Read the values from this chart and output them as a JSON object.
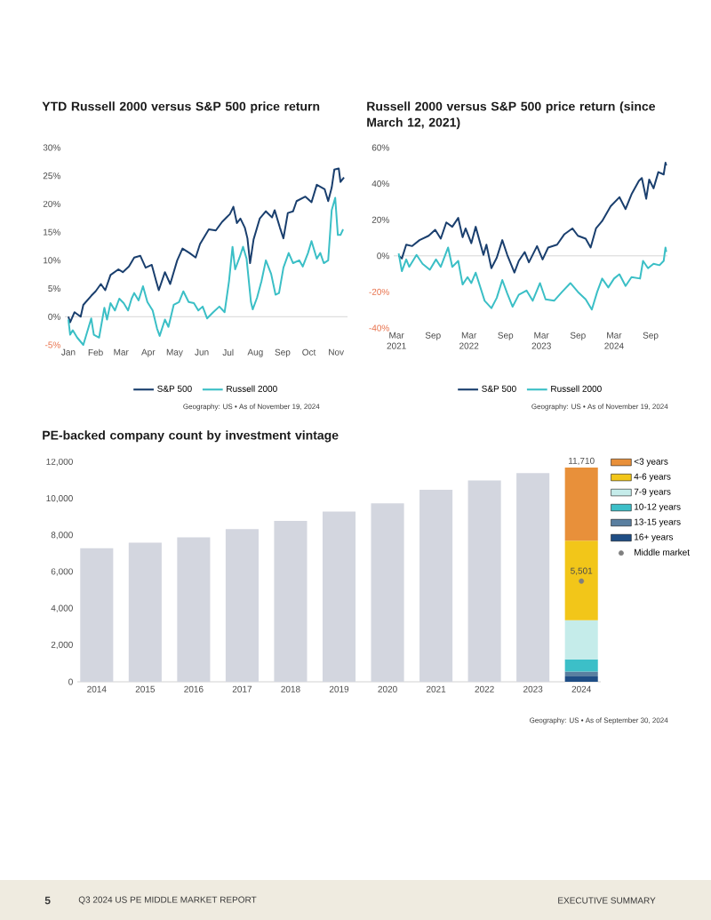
{
  "chart_data": [
    {
      "type": "line",
      "title": "YTD Russell 2000 versus S&P 500 price return",
      "xlim": [
        "2023-12-28",
        "2024-11-14"
      ],
      "xticks": [
        {
          "value": "2024-01-01",
          "label": "Jan"
        },
        {
          "value": "2024-02-01",
          "label": "Feb"
        },
        {
          "value": "2024-03-01",
          "label": "Mar"
        },
        {
          "value": "2024-04-01",
          "label": "Apr"
        },
        {
          "value": "2024-05-01",
          "label": "May"
        },
        {
          "value": "2024-06-01",
          "label": "Jun"
        },
        {
          "value": "2024-07-01",
          "label": "Jul"
        },
        {
          "value": "2024-08-01",
          "label": "Aug"
        },
        {
          "value": "2024-09-01",
          "label": "Sep"
        },
        {
          "value": "2024-10-01",
          "label": "Oct"
        },
        {
          "value": "2024-11-01",
          "label": "Nov"
        }
      ],
      "ylim": [
        -5,
        30
      ],
      "yticks": [
        {
          "value": -5,
          "label": "-5%"
        },
        {
          "value": 0,
          "label": "0%"
        },
        {
          "value": 5,
          "label": "5%"
        },
        {
          "value": 10,
          "label": "10%"
        },
        {
          "value": 15,
          "label": "15%"
        },
        {
          "value": 20,
          "label": "20%"
        },
        {
          "value": 25,
          "label": "25%"
        },
        {
          "value": 30,
          "label": "30%"
        }
      ],
      "ref_lines": [
        {
          "axis": "y",
          "value": 0,
          "color": "#cccccc"
        }
      ],
      "legend": "bottom",
      "annotations": [
        "Geography: US • As of November 19, 2024"
      ],
      "series": [
        {
          "name": "S&P 500",
          "color": "#1a3f6e",
          "x": [
            "2024-01-01",
            "2024-01-03",
            "2024-01-08",
            "2024-01-15",
            "2024-01-18",
            "2024-01-27",
            "2024-02-01",
            "2024-02-07",
            "2024-02-12",
            "2024-02-18",
            "2024-02-27",
            "2024-03-03",
            "2024-03-10",
            "2024-03-16",
            "2024-03-23",
            "2024-03-29",
            "2024-04-05",
            "2024-04-10",
            "2024-04-13",
            "2024-04-20",
            "2024-04-26",
            "2024-05-04",
            "2024-05-10",
            "2024-05-18",
            "2024-05-25",
            "2024-05-30",
            "2024-06-09",
            "2024-06-17",
            "2024-06-24",
            "2024-07-03",
            "2024-07-07",
            "2024-07-11",
            "2024-07-15",
            "2024-07-20",
            "2024-07-23",
            "2024-07-26",
            "2024-07-30",
            "2024-08-06",
            "2024-08-13",
            "2024-08-20",
            "2024-08-23",
            "2024-08-29",
            "2024-09-02",
            "2024-09-07",
            "2024-09-13",
            "2024-09-17",
            "2024-09-27",
            "2024-10-04",
            "2024-10-10",
            "2024-10-19",
            "2024-10-23",
            "2024-10-27",
            "2024-10-30",
            "2024-11-04",
            "2024-11-06",
            "2024-11-10"
          ],
          "values": [
            0,
            -1.0,
            0.8,
            0,
            2.1,
            3.7,
            4.5,
            5.8,
            4.7,
            7.4,
            8.4,
            7.9,
            8.9,
            10.5,
            10.8,
            8.7,
            9.2,
            6.3,
            4.7,
            7.9,
            5.8,
            10.0,
            12.1,
            11.3,
            10.5,
            12.9,
            15.5,
            15.3,
            16.8,
            18.2,
            19.5,
            16.6,
            17.4,
            15.8,
            13.9,
            9.5,
            13.7,
            17.4,
            18.7,
            17.6,
            18.9,
            15.8,
            13.9,
            18.4,
            18.7,
            20.5,
            21.3,
            20.3,
            23.4,
            22.6,
            20.5,
            22.9,
            26.1,
            26.3,
            23.9,
            24.7
          ]
        },
        {
          "name": "Russell 2000",
          "color": "#3bbfc6",
          "x": [
            "2024-01-01",
            "2024-01-03",
            "2024-01-06",
            "2024-01-11",
            "2024-01-18",
            "2024-01-23",
            "2024-01-27",
            "2024-01-30",
            "2024-02-05",
            "2024-02-11",
            "2024-02-14",
            "2024-02-18",
            "2024-02-23",
            "2024-02-28",
            "2024-03-04",
            "2024-03-09",
            "2024-03-13",
            "2024-03-16",
            "2024-03-21",
            "2024-03-26",
            "2024-03-31",
            "2024-04-06",
            "2024-04-11",
            "2024-04-14",
            "2024-04-20",
            "2024-04-24",
            "2024-04-30",
            "2024-05-06",
            "2024-05-11",
            "2024-05-17",
            "2024-05-23",
            "2024-05-28",
            "2024-06-02",
            "2024-06-07",
            "2024-06-14",
            "2024-06-21",
            "2024-06-27",
            "2024-07-02",
            "2024-07-06",
            "2024-07-09",
            "2024-07-14",
            "2024-07-18",
            "2024-07-22",
            "2024-07-27",
            "2024-07-29",
            "2024-08-03",
            "2024-08-08",
            "2024-08-13",
            "2024-08-19",
            "2024-08-24",
            "2024-08-28",
            "2024-09-02",
            "2024-09-08",
            "2024-09-13",
            "2024-09-20",
            "2024-09-24",
            "2024-09-30",
            "2024-10-04",
            "2024-10-10",
            "2024-10-14",
            "2024-10-18",
            "2024-10-23",
            "2024-10-27",
            "2024-10-31",
            "2024-11-03",
            "2024-11-06",
            "2024-11-09"
          ],
          "values": [
            -0.5,
            -3.2,
            -2.4,
            -3.7,
            -5.0,
            -2.4,
            -0.3,
            -3.2,
            -3.7,
            1.6,
            -0.5,
            2.4,
            1.1,
            3.2,
            2.4,
            1.1,
            3.2,
            4.2,
            2.9,
            5.4,
            2.6,
            1.1,
            -2.1,
            -3.4,
            -0.5,
            -1.8,
            2.1,
            2.6,
            4.5,
            2.6,
            2.4,
            1.1,
            1.8,
            -0.3,
            0.8,
            1.8,
            0.8,
            6.3,
            12.4,
            8.4,
            10.5,
            12.4,
            10.3,
            2.6,
            1.3,
            3.4,
            6.3,
            10.0,
            7.6,
            3.9,
            4.2,
            8.7,
            11.3,
            9.5,
            10.0,
            8.9,
            11.3,
            13.4,
            10.3,
            11.3,
            9.5,
            10.0,
            18.9,
            21.1,
            14.5,
            14.5,
            15.5
          ]
        }
      ]
    },
    {
      "type": "line",
      "title": "Russell 2000 versus S&P 500 price return (since March 12, 2021)",
      "xlim": [
        "2021-02-15",
        "2024-11-25"
      ],
      "xticks": [
        {
          "value": "2021-03-01",
          "label": "Mar 2021"
        },
        {
          "value": "2021-09-01",
          "label": "Sep"
        },
        {
          "value": "2022-03-01",
          "label": "Mar 2022"
        },
        {
          "value": "2022-09-01",
          "label": "Sep"
        },
        {
          "value": "2023-03-01",
          "label": "Mar 2023"
        },
        {
          "value": "2023-09-01",
          "label": "Sep"
        },
        {
          "value": "2024-03-01",
          "label": "Mar 2024"
        },
        {
          "value": "2024-09-01",
          "label": "Sep"
        }
      ],
      "ylim": [
        -40,
        60
      ],
      "yticks": [
        {
          "value": -40,
          "label": "-40%"
        },
        {
          "value": -20,
          "label": "-20%"
        },
        {
          "value": 0,
          "label": "0%"
        },
        {
          "value": 20,
          "label": "20%"
        },
        {
          "value": 40,
          "label": "40%"
        },
        {
          "value": 60,
          "label": "60%"
        }
      ],
      "ref_lines": [
        {
          "axis": "y",
          "value": 0,
          "color": "#cccccc"
        }
      ],
      "legend": "bottom",
      "annotations": [
        "Geography: US • As of November 19, 2024"
      ],
      "series": [
        {
          "name": "S&P 500",
          "color": "#1a3f6e",
          "x": [
            "2021-03-12",
            "2021-03-28",
            "2021-04-19",
            "2021-05-19",
            "2021-06-25",
            "2021-08-10",
            "2021-09-12",
            "2021-10-10",
            "2021-11-07",
            "2021-12-07",
            "2022-01-06",
            "2022-01-28",
            "2022-02-12",
            "2022-03-13",
            "2022-04-04",
            "2022-05-13",
            "2022-05-28",
            "2022-06-22",
            "2022-07-19",
            "2022-08-16",
            "2022-09-10",
            "2022-10-16",
            "2022-11-07",
            "2022-12-07",
            "2022-12-28",
            "2023-02-07",
            "2023-03-07",
            "2023-04-04",
            "2023-05-19",
            "2023-06-25",
            "2023-08-04",
            "2023-09-01",
            "2023-10-10",
            "2023-11-04",
            "2023-12-01",
            "2024-01-01",
            "2024-02-13",
            "2024-03-28",
            "2024-04-28",
            "2024-05-28",
            "2024-07-04",
            "2024-07-19",
            "2024-08-10",
            "2024-08-25",
            "2024-09-16",
            "2024-10-10",
            "2024-11-06",
            "2024-11-15",
            "2024-11-19"
          ],
          "values": [
            0,
            -1.5,
            6.2,
            5.4,
            8.7,
            11.1,
            14.4,
            9.5,
            18.5,
            16.1,
            21,
            10.3,
            15.2,
            7.0,
            16.1,
            0.5,
            6.2,
            -6.9,
            -1.1,
            8.7,
            0.5,
            -9.3,
            -2.8,
            2.1,
            -3.6,
            5.4,
            -2.0,
            4.6,
            6.2,
            12,
            15.2,
            11.1,
            9.5,
            4.6,
            15.2,
            19.3,
            27.5,
            32.5,
            25.9,
            34.1,
            41.5,
            43.1,
            31.6,
            42.3,
            37.4,
            46.4,
            45.1,
            51.6,
            50.0
          ]
        },
        {
          "name": "Russell 2000",
          "color": "#3bbfc6",
          "x": [
            "2021-03-12",
            "2021-03-28",
            "2021-04-19",
            "2021-05-04",
            "2021-06-10",
            "2021-07-10",
            "2021-08-16",
            "2021-09-16",
            "2021-10-10",
            "2021-11-16",
            "2021-12-07",
            "2022-01-06",
            "2022-01-28",
            "2022-02-22",
            "2022-03-13",
            "2022-04-04",
            "2022-05-19",
            "2022-06-22",
            "2022-07-19",
            "2022-08-16",
            "2022-09-10",
            "2022-10-07",
            "2022-11-07",
            "2022-12-16",
            "2023-01-16",
            "2023-02-22",
            "2023-03-22",
            "2023-05-04",
            "2023-06-13",
            "2023-07-25",
            "2023-09-01",
            "2023-10-10",
            "2023-11-10",
            "2023-12-07",
            "2024-01-01",
            "2024-02-01",
            "2024-03-01",
            "2024-03-28",
            "2024-04-28",
            "2024-05-28",
            "2024-07-10",
            "2024-07-25",
            "2024-08-19",
            "2024-09-16",
            "2024-10-16",
            "2024-11-06",
            "2024-11-15",
            "2024-11-19"
          ],
          "values": [
            1.3,
            -8.5,
            -2.0,
            -6.1,
            0.5,
            -4.4,
            -7.7,
            -2.0,
            -6.1,
            4.6,
            -6.1,
            -2.8,
            -15.9,
            -11.8,
            -15.1,
            -9.3,
            -24.9,
            -29.0,
            -23.3,
            -13.4,
            -20.8,
            -28.2,
            -21.6,
            -19.2,
            -24.9,
            -15.1,
            -24.1,
            -24.9,
            -20.0,
            -15.1,
            -20.0,
            -24.1,
            -29.8,
            -20.0,
            -12.6,
            -17.5,
            -12.6,
            -10.2,
            -16.7,
            -11.8,
            -12.6,
            -2.8,
            -6.9,
            -4.4,
            -5.2,
            -2.8,
            4.6,
            2.1
          ]
        }
      ]
    },
    {
      "type": "bar",
      "title": "PE-backed company count by investment vintage",
      "categories": [
        "2014",
        "2015",
        "2016",
        "2017",
        "2018",
        "2019",
        "2020",
        "2021",
        "2022",
        "2023",
        "2024"
      ],
      "ylim": [
        0,
        12000
      ],
      "yticks": [
        0,
        {
          "value": 2000,
          "label": "2,000"
        },
        {
          "value": 4000,
          "label": "4,000"
        },
        {
          "value": 6000,
          "label": "6,000"
        },
        {
          "value": 8000,
          "label": "8,000"
        },
        {
          "value": 10000,
          "label": "10,000"
        },
        {
          "value": 12000,
          "label": "12,000"
        }
      ],
      "stacked": true,
      "legend": "right",
      "totals": [
        null,
        null,
        null,
        null,
        null,
        null,
        null,
        null,
        null,
        null,
        "11,710"
      ],
      "annotations": [
        "Geography: US • As of September 30, 2024",
        "5",
        "Q3 2024 US PE MIDDLE MARKET REPORT",
        "EXECUTIVE SUMMARY"
      ],
      "series": [
        {
          "color": "#d3d6df",
          "values": [
            7300,
            7600,
            7900,
            8350,
            8800,
            9300,
            9750,
            10500,
            11000,
            11400,
            null
          ]
        },
        {
          "name": "16+ years",
          "color": "#1f4e85",
          "values": [
            null,
            null,
            null,
            null,
            null,
            null,
            null,
            null,
            null,
            null,
            290
          ]
        },
        {
          "name": "13-15 years",
          "color": "#5a7fa0",
          "values": [
            null,
            null,
            null,
            null,
            null,
            null,
            null,
            null,
            null,
            null,
            270
          ]
        },
        {
          "name": "10-12 years",
          "color": "#3cbfc8",
          "values": [
            null,
            null,
            null,
            null,
            null,
            null,
            null,
            null,
            null,
            null,
            670
          ]
        },
        {
          "name": "7-9 years",
          "color": "#c5ecea",
          "values": [
            null,
            null,
            null,
            null,
            null,
            null,
            null,
            null,
            null,
            null,
            2130
          ]
        },
        {
          "name": "4-6 years",
          "color": "#f2c619",
          "values": [
            null,
            null,
            null,
            null,
            null,
            null,
            null,
            null,
            null,
            null,
            4350
          ]
        },
        {
          "name": "<3 years",
          "color": "#e8903a",
          "values": [
            null,
            null,
            null,
            null,
            null,
            null,
            null,
            null,
            null,
            null,
            4000
          ]
        },
        {
          "name": "Middle market",
          "type": "scatter",
          "marker": "circle",
          "color": "#7f7f7f",
          "values": [
            null,
            null,
            null,
            null,
            null,
            null,
            null,
            null,
            null,
            null,
            5501
          ],
          "value_labels": [
            null,
            null,
            null,
            null,
            null,
            null,
            null,
            null,
            null,
            null,
            "5,501"
          ]
        }
      ]
    }
  ]
}
